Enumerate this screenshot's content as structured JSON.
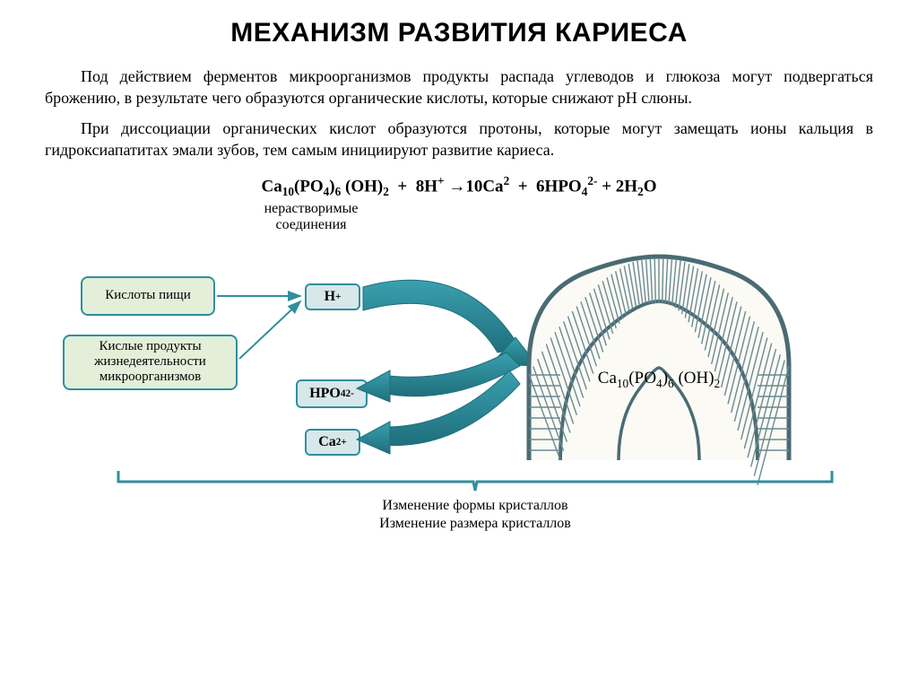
{
  "title": "МЕХАНИЗМ РАЗВИТИЯ КАРИЕСА",
  "para1": "Под действием ферментов микроорганизмов продукты распада углеводов и глюкоза могут подвергаться брожению, в результате чего образуются органические кислоты, которые снижают рН слюны.",
  "para2": "При диссоциации органических кислот образуются протоны, которые могут замещать ионы кальция в гидроксиапатитах эмали зубов, тем самым инициируют развитие кариеса.",
  "eq_note_l1": "нерастворимые",
  "eq_note_l2": "соединения",
  "boxes": {
    "acids": {
      "label": "Кислоты пищи",
      "bg": "#e3efd9",
      "border": "#2f8f9e"
    },
    "microbes": {
      "label": "Кислые продукты жизнедеятельности микроорганизмов",
      "bg": "#e3efd9",
      "border": "#2f8f9e"
    }
  },
  "ions": {
    "h": {
      "label_html": "H<span class='sup'>+</span>",
      "bg": "#d7e7ea",
      "border": "#2f8f9e"
    },
    "hpo": {
      "label_html": "HPO<span class='sub'>4</span><span class='sup'>2-</span>",
      "bg": "#d7e7ea",
      "border": "#2f8f9e"
    },
    "ca": {
      "label_html": "Ca<span class='sup'>2+</span>",
      "bg": "#d7e7ea",
      "border": "#2f8f9e"
    }
  },
  "bottom_l1": "Изменение формы кристаллов",
  "bottom_l2": "Изменение размера кристаллов",
  "colors": {
    "teal": "#2f8f9e",
    "teal_dark": "#1f6f7c",
    "tooth_outline": "#4a6b73",
    "enamel_line": "#6b8a91",
    "bracket": "#2f8f9e"
  }
}
